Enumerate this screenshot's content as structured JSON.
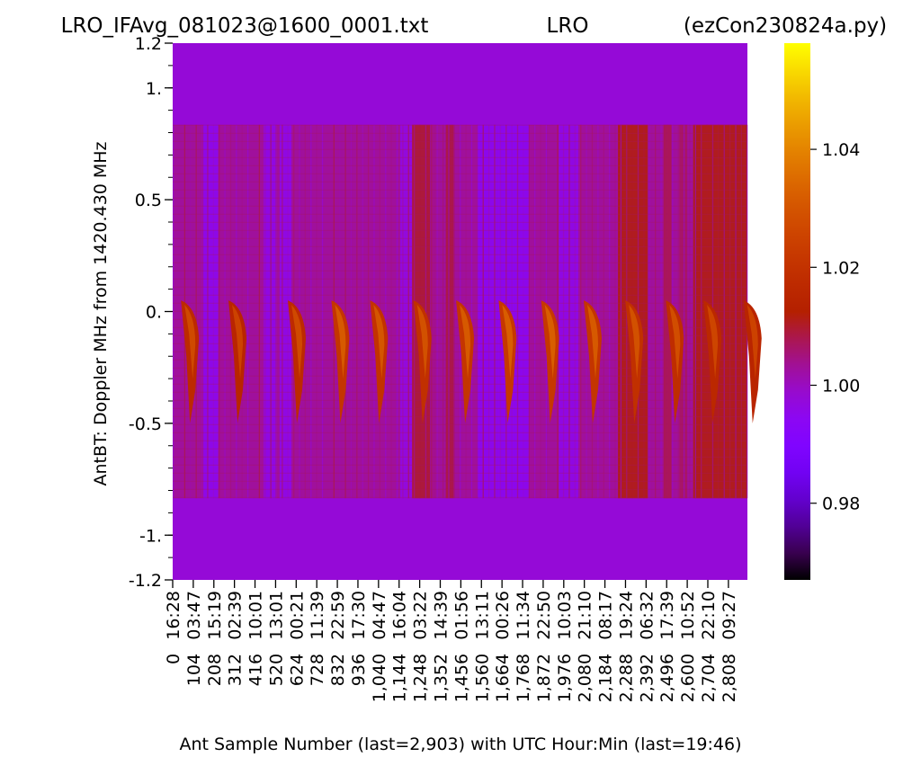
{
  "title": {
    "left": "LRO_IFAvg_081023@1600_0001.txt",
    "center": "LRO",
    "right": "(ezCon230824a.py)"
  },
  "chart_data": {
    "type": "heatmap",
    "ylabel": "AntBT:  Doppler MHz from 1420.430 MHz",
    "xlabel": "Ant Sample Number (last=2,903) with UTC Hour:Min (last=19:46)",
    "ylim": [
      -1.2,
      1.2
    ],
    "y_tick_labels": [
      {
        "value": 1.2,
        "label": "1.2"
      },
      {
        "value": 1.0,
        "label": "1."
      },
      {
        "value": 0.5,
        "label": "0.5"
      },
      {
        "value": 0.0,
        "label": "0."
      },
      {
        "value": -0.5,
        "label": "-0.5"
      },
      {
        "value": -1.0,
        "label": "-1."
      },
      {
        "value": -1.2,
        "label": "-1.2"
      }
    ],
    "y_minor_step": 0.1,
    "sample_count": 2904,
    "x_tick_samples": [
      0,
      104,
      208,
      312,
      416,
      520,
      624,
      728,
      832,
      936,
      1040,
      1144,
      1248,
      1352,
      1456,
      1560,
      1664,
      1768,
      1872,
      1976,
      2080,
      2184,
      2288,
      2392,
      2496,
      2600,
      2704,
      2808
    ],
    "x_tick_labels": [
      "0",
      "104",
      "208",
      "312",
      "416",
      "520",
      "624",
      "728",
      "832",
      "936",
      "1,040",
      "1,144",
      "1,248",
      "1,352",
      "1,456",
      "1,560",
      "1,664",
      "1,768",
      "1,872",
      "1,976",
      "2,080",
      "2,184",
      "2,288",
      "2,392",
      "2,496",
      "2,600",
      "2,704",
      "2,808"
    ],
    "x_time_labels": [
      "16:28",
      "03:47",
      "15:19",
      "02:39",
      "10:01",
      "13:01",
      "00:21",
      "11:39",
      "22:59",
      "17:30",
      "04:47",
      "16:04",
      "03:22",
      "14:39",
      "01:56",
      "13:11",
      "00:26",
      "11:34",
      "22:50",
      "10:03",
      "21:10",
      "08:17",
      "19:24",
      "06:32",
      "17:39",
      "10:52",
      "22:10",
      "09:27"
    ],
    "colorbar": {
      "range": [
        0.967,
        1.058
      ],
      "ticks": [
        {
          "value": 0.98,
          "label": "0.98"
        },
        {
          "value": 1.0,
          "label": "1.00"
        },
        {
          "value": 1.02,
          "label": "1.02"
        },
        {
          "value": 1.04,
          "label": "1.04"
        }
      ],
      "colormap": "gnuplot"
    },
    "data_band_mhz": [
      -0.835,
      0.835
    ],
    "outside_band_value": 0.998,
    "background_value": 1.003,
    "hydrogen_peaks": [
      {
        "sample": 60,
        "strength": 1.021
      },
      {
        "sample": 300,
        "strength": 1.019
      },
      {
        "sample": 600,
        "strength": 1.021
      },
      {
        "sample": 820,
        "strength": 1.025
      },
      {
        "sample": 1015,
        "strength": 1.024
      },
      {
        "sample": 1235,
        "strength": 1.023
      },
      {
        "sample": 1450,
        "strength": 1.025
      },
      {
        "sample": 1665,
        "strength": 1.026
      },
      {
        "sample": 1880,
        "strength": 1.026
      },
      {
        "sample": 2095,
        "strength": 1.025
      },
      {
        "sample": 2305,
        "strength": 1.023
      },
      {
        "sample": 2510,
        "strength": 1.022
      },
      {
        "sample": 2700,
        "strength": 1.02
      },
      {
        "sample": 2903,
        "strength": 1.019
      }
    ],
    "column_bands": [
      {
        "from": 155,
        "to": 230,
        "value": 0.994
      },
      {
        "from": 460,
        "to": 520,
        "value": 0.995
      },
      {
        "from": 540,
        "to": 600,
        "value": 0.995
      },
      {
        "from": 1150,
        "to": 1210,
        "value": 0.996
      },
      {
        "from": 1210,
        "to": 1300,
        "value": 1.01
      },
      {
        "from": 1300,
        "to": 1330,
        "value": 1.004
      },
      {
        "from": 1380,
        "to": 1420,
        "value": 1.009
      },
      {
        "from": 1540,
        "to": 1640,
        "value": 0.993
      },
      {
        "from": 1640,
        "to": 1800,
        "value": 0.993
      },
      {
        "from": 1950,
        "to": 2050,
        "value": 0.995
      },
      {
        "from": 2250,
        "to": 2400,
        "value": 1.012
      },
      {
        "from": 2480,
        "to": 2520,
        "value": 1.008
      },
      {
        "from": 2560,
        "to": 2600,
        "value": 1.007
      },
      {
        "from": 2630,
        "to": 2903,
        "value": 1.012
      }
    ]
  }
}
